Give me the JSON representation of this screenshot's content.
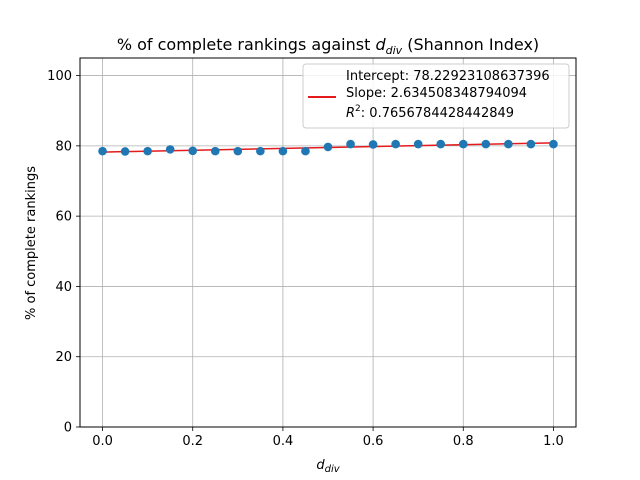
{
  "chart_data": {
    "type": "scatter",
    "title_main": "% of complete rankings against ",
    "title_var": "d",
    "title_var_sub": "div",
    "title_suffix": " (Shannon Index)",
    "xlabel_main": "d",
    "xlabel_sub": "div",
    "ylabel": "% of complete rankings",
    "xlim": [
      -0.05,
      1.05
    ],
    "ylim": [
      0,
      105
    ],
    "xticks": [
      0.0,
      0.2,
      0.4,
      0.6,
      0.8,
      1.0
    ],
    "xtick_labels": [
      "0.0",
      "0.2",
      "0.4",
      "0.6",
      "0.8",
      "1.0"
    ],
    "yticks": [
      0,
      20,
      40,
      60,
      80,
      100
    ],
    "ytick_labels": [
      "0",
      "20",
      "40",
      "60",
      "80",
      "100"
    ],
    "grid": true,
    "points_x": [
      0.0,
      0.05,
      0.1,
      0.15,
      0.2,
      0.25,
      0.3,
      0.35,
      0.4,
      0.45,
      0.5,
      0.55,
      0.6,
      0.65,
      0.7,
      0.75,
      0.8,
      0.85,
      0.9,
      0.95,
      1.0
    ],
    "points_y": [
      78.5,
      78.4,
      78.5,
      79.0,
      78.6,
      78.5,
      78.5,
      78.5,
      78.5,
      78.5,
      79.7,
      80.5,
      80.4,
      80.5,
      80.5,
      80.5,
      80.5,
      80.5,
      80.5,
      80.5,
      80.5
    ],
    "point_color": "#1f77b4",
    "fit": {
      "intercept": 78.22923108637396,
      "slope": 2.634508348794094,
      "color": "#e41a1c"
    },
    "legend": {
      "placement": "top-right",
      "intercept_text": "Intercept: 78.22923108637396",
      "slope_text": "Slope: 2.634508348794094",
      "r2_prefix": "R",
      "r2_sup": "2",
      "r2_value": ": 0.7656784428442849"
    }
  }
}
